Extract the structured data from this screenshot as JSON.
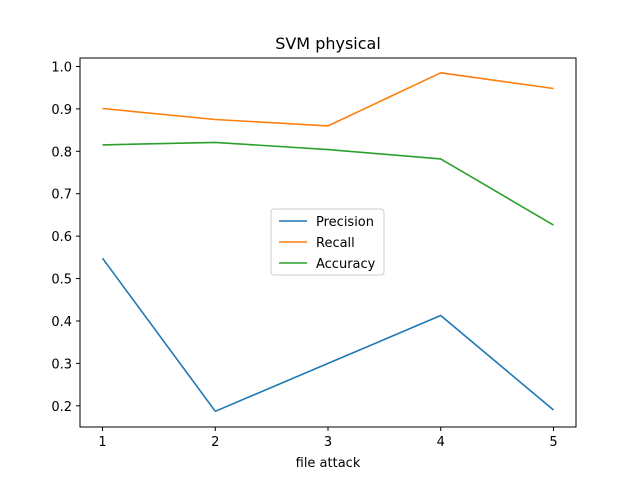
{
  "chart_data": {
    "type": "line",
    "title": "SVM physical",
    "xlabel": "file attack",
    "ylabel": "",
    "x": [
      1,
      2,
      3,
      4,
      5
    ],
    "xticks": [
      "1",
      "2",
      "3",
      "4",
      "5"
    ],
    "yticks": [
      "0.2",
      "0.3",
      "0.4",
      "0.5",
      "0.6",
      "0.7",
      "0.8",
      "0.9",
      "1.0"
    ],
    "xlim": [
      0.8,
      5.2
    ],
    "ylim": [
      0.15,
      1.02
    ],
    "grid": false,
    "legend_position": "center",
    "series": [
      {
        "name": "Precision",
        "color": "#1f77b4",
        "values": [
          0.548,
          0.187,
          0.3,
          0.413,
          0.19
        ]
      },
      {
        "name": "Recall",
        "color": "#ff7f0e",
        "values": [
          0.901,
          0.875,
          0.86,
          0.985,
          0.948
        ]
      },
      {
        "name": "Accuracy",
        "color": "#2ca02c",
        "values": [
          0.815,
          0.821,
          0.804,
          0.782,
          0.626
        ]
      }
    ]
  }
}
